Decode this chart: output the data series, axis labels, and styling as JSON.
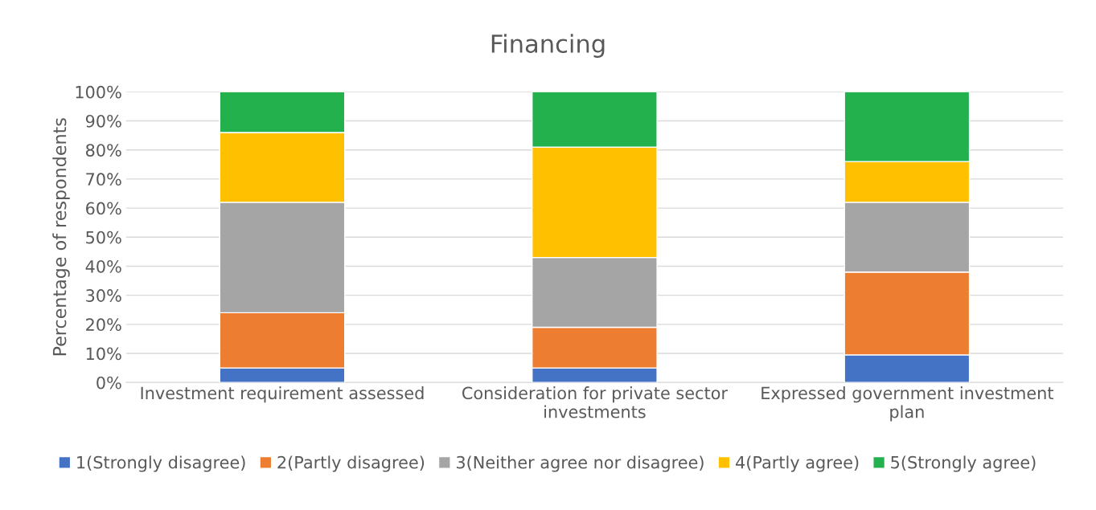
{
  "chart_data": {
    "type": "bar",
    "title": "Financing",
    "ylabel": "Percentage of respondents",
    "categories": [
      "Investment requirement assessed",
      "Consideration for private sector investments",
      "Expressed government investment plan"
    ],
    "stacked": true,
    "series": [
      {
        "name": "1(Strongly disagree)",
        "color": "#4472c4",
        "values": [
          5,
          5,
          9.5
        ]
      },
      {
        "name": "2(Partly disagree)",
        "color": "#ed7d31",
        "values": [
          19,
          14,
          28.5
        ]
      },
      {
        "name": "3(Neither agree nor disagree)",
        "color": "#a5a5a5",
        "values": [
          38,
          24,
          24
        ]
      },
      {
        "name": "4(Partly agree)",
        "color": "#ffc000",
        "values": [
          24,
          38,
          14
        ]
      },
      {
        "name": "5(Strongly agree)",
        "color": "#22b14c",
        "values": [
          14,
          19,
          24
        ]
      }
    ],
    "ylim": [
      0,
      100
    ],
    "yticks": [
      {
        "value": 0,
        "label": "0%"
      },
      {
        "value": 10,
        "label": "10%"
      },
      {
        "value": 20,
        "label": "20%"
      },
      {
        "value": 30,
        "label": "30%"
      },
      {
        "value": 40,
        "label": "40%"
      },
      {
        "value": 50,
        "label": "50%"
      },
      {
        "value": 60,
        "label": "60%"
      },
      {
        "value": 70,
        "label": "70%"
      },
      {
        "value": 80,
        "label": "80%"
      },
      {
        "value": 90,
        "label": "90%"
      },
      {
        "value": 100,
        "label": "100%"
      }
    ],
    "grid": "y",
    "legend": "bottom"
  }
}
